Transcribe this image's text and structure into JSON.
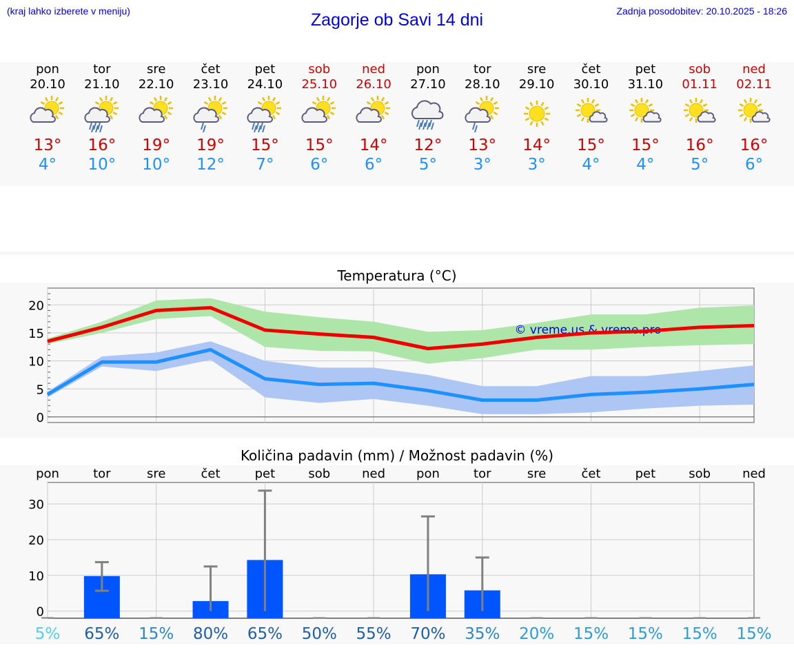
{
  "header": {
    "hint": "(kraj lahko izberete v meniju)",
    "title": "Zagorje ob Savi 14 dni",
    "updated": "Zadnja posodobitev: 20.10.2025 - 18:26"
  },
  "days": [
    {
      "name": "pon",
      "date": "20.10",
      "max": "13°",
      "min": "4°",
      "weekend": false,
      "icon": "sun-cloud-icon"
    },
    {
      "name": "tor",
      "date": "21.10",
      "max": "16°",
      "min": "10°",
      "weekend": false,
      "icon": "sun-cloud-rain-icon"
    },
    {
      "name": "sre",
      "date": "22.10",
      "max": "19°",
      "min": "10°",
      "weekend": false,
      "icon": "sun-cloud-icon"
    },
    {
      "name": "čet",
      "date": "23.10",
      "max": "19°",
      "min": "12°",
      "weekend": false,
      "icon": "sun-cloud-light-rain-icon"
    },
    {
      "name": "pet",
      "date": "24.10",
      "max": "15°",
      "min": "7°",
      "weekend": false,
      "icon": "sun-cloud-rain-icon"
    },
    {
      "name": "sob",
      "date": "25.10",
      "max": "15°",
      "min": "6°",
      "weekend": true,
      "icon": "sun-cloud-icon"
    },
    {
      "name": "ned",
      "date": "26.10",
      "max": "14°",
      "min": "6°",
      "weekend": true,
      "icon": "sun-cloud-icon"
    },
    {
      "name": "pon",
      "date": "27.10",
      "max": "12°",
      "min": "5°",
      "weekend": false,
      "icon": "cloud-rain-icon"
    },
    {
      "name": "tor",
      "date": "28.10",
      "max": "13°",
      "min": "3°",
      "weekend": false,
      "icon": "sun-cloud-light-rain-icon"
    },
    {
      "name": "sre",
      "date": "29.10",
      "max": "14°",
      "min": "3°",
      "weekend": false,
      "icon": "sun-icon"
    },
    {
      "name": "čet",
      "date": "30.10",
      "max": "15°",
      "min": "4°",
      "weekend": false,
      "icon": "sun-small-cloud-icon"
    },
    {
      "name": "pet",
      "date": "31.10",
      "max": "15°",
      "min": "4°",
      "weekend": false,
      "icon": "sun-small-cloud-icon"
    },
    {
      "name": "sob",
      "date": "01.11",
      "max": "16°",
      "min": "5°",
      "weekend": true,
      "icon": "sun-small-cloud-icon"
    },
    {
      "name": "ned",
      "date": "02.11",
      "max": "16°",
      "min": "6°",
      "weekend": true,
      "icon": "sun-small-cloud-icon"
    }
  ],
  "colors": {
    "max": "#cc0000",
    "min": "#1e90ff",
    "max_line": "#ee0000",
    "max_band": "#aee6aa",
    "min_line": "#1e90ff",
    "min_band": "#aec6f4",
    "bar": "#0055ff",
    "error_bar": "#808080",
    "watermark": "#0000dd"
  },
  "chart_data": [
    {
      "type": "line",
      "title": "Temperatura (°C)",
      "x": [
        "20.10",
        "21.10",
        "22.10",
        "23.10",
        "24.10",
        "25.10",
        "26.10",
        "27.10",
        "28.10",
        "29.10",
        "30.10",
        "31.10",
        "01.11",
        "02.11"
      ],
      "ylim": [
        -1,
        23
      ],
      "yticks": [
        0,
        5,
        10,
        15,
        20
      ],
      "grid": true,
      "watermark": "© vreme.us & vreme.pro",
      "series": [
        {
          "values": [
            13.5,
            16,
            19,
            19.5,
            15.5,
            14.8,
            14.2,
            12.2,
            13,
            14.2,
            15,
            15.3,
            16,
            16.3
          ],
          "range_low": [
            13,
            15,
            17.5,
            18,
            12.5,
            11.8,
            11.7,
            9.5,
            10.5,
            12,
            12,
            12.5,
            12.8,
            13
          ],
          "range_high": [
            14,
            17,
            20.8,
            21.2,
            18.8,
            17.8,
            17,
            15.2,
            15.5,
            16.8,
            18.3,
            18.3,
            19.5,
            19.9
          ]
        },
        {
          "values": [
            4,
            9.8,
            9.8,
            12,
            6.8,
            5.8,
            6,
            4.7,
            3,
            3,
            4,
            4.4,
            5,
            5.8
          ],
          "range_low": [
            3.5,
            9,
            8.2,
            10.2,
            3.5,
            2.5,
            3.2,
            2,
            0.5,
            0.5,
            0.8,
            1.5,
            2,
            2.2
          ],
          "range_high": [
            4.5,
            10.8,
            11.5,
            13.5,
            10,
            8.8,
            8.8,
            7.5,
            5.5,
            5.5,
            7.3,
            7.3,
            8.2,
            9.2
          ]
        }
      ]
    },
    {
      "type": "bar",
      "title": "Količina padavin (mm) / Možnost padavin (%)",
      "categories": [
        "pon",
        "tor",
        "sre",
        "čet",
        "pet",
        "sob",
        "ned",
        "pon",
        "tor",
        "sre",
        "čet",
        "pet",
        "sob",
        "ned"
      ],
      "values": [
        0,
        9.8,
        0,
        2.8,
        14.3,
        0,
        0,
        10.3,
        5.8,
        0,
        0,
        0,
        0,
        0
      ],
      "error_low": [
        0,
        5.7,
        0,
        0,
        0,
        0,
        0,
        0,
        0,
        0,
        0,
        0,
        0,
        0
      ],
      "error_high": [
        0,
        13.7,
        0,
        12.5,
        33.7,
        0,
        0,
        26.5,
        15,
        0,
        0,
        0,
        0,
        0
      ],
      "ylim": [
        -2,
        36
      ],
      "yticks": [
        0,
        10,
        20,
        30
      ],
      "grid": true,
      "probability": [
        "5%",
        "65%",
        "15%",
        "80%",
        "65%",
        "50%",
        "55%",
        "70%",
        "35%",
        "20%",
        "15%",
        "15%",
        "15%",
        "15%"
      ],
      "probability_colors": [
        "#55ccee",
        "#1f5fa8",
        "#2e86c8",
        "#1f5fa8",
        "#1f5fa8",
        "#1f5fa8",
        "#1f5fa8",
        "#1f5fa8",
        "#2e86c8",
        "#2e9bd6",
        "#2e9bd6",
        "#2e9bd6",
        "#2e9bd6",
        "#2e9bd6"
      ]
    }
  ]
}
